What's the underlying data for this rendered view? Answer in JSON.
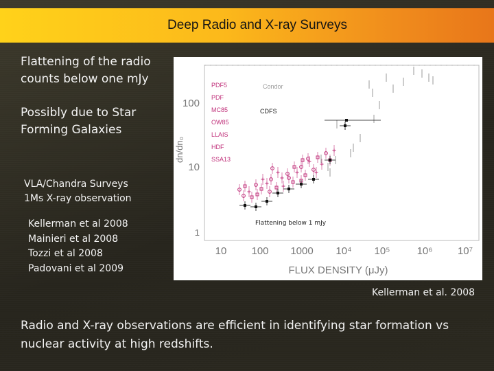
{
  "slide": {
    "title": "Deep Radio and X-ray Surveys",
    "point1": "Flattening of the radio counts below one mJy",
    "point2": "Possibly due  to Star Forming Galaxies",
    "point3_line1": "VLA/Chandra Surveys",
    "point3_line2": "1Ms X-ray  observation",
    "references": [
      "Kellerman et al 2008",
      "Mainieri et al 2008",
      "Tozzi et al 2008",
      "Padovani et al 2009"
    ],
    "figure_caption": "Kellerman et al. 2008",
    "conclusion": "Radio and X-ray observations are efficient in identifying star formation vs nuclear activity at high redshifts."
  },
  "figure": {
    "annotation": "Flattening below 1 mJy",
    "ylabel": "dn/dn₀",
    "xlabel": "FLUX DENSITY (μJy)",
    "x_tick_labels": [
      "10",
      "100",
      "1000",
      "10⁴",
      "10⁵",
      "10⁶",
      "10⁷"
    ],
    "y_tick_labels": [
      "1",
      "10",
      "100"
    ],
    "legend": {
      "left": [
        "PDF5",
        "PDF",
        "MC85",
        "OW85",
        "LLAIS",
        "HDF",
        "SSA13"
      ],
      "right": [
        "Condor",
        "CDFS"
      ]
    },
    "colors": {
      "survey_points": "#c0307a",
      "chandra_points": "#1a1a1a",
      "reference_points": "#999999"
    }
  }
}
